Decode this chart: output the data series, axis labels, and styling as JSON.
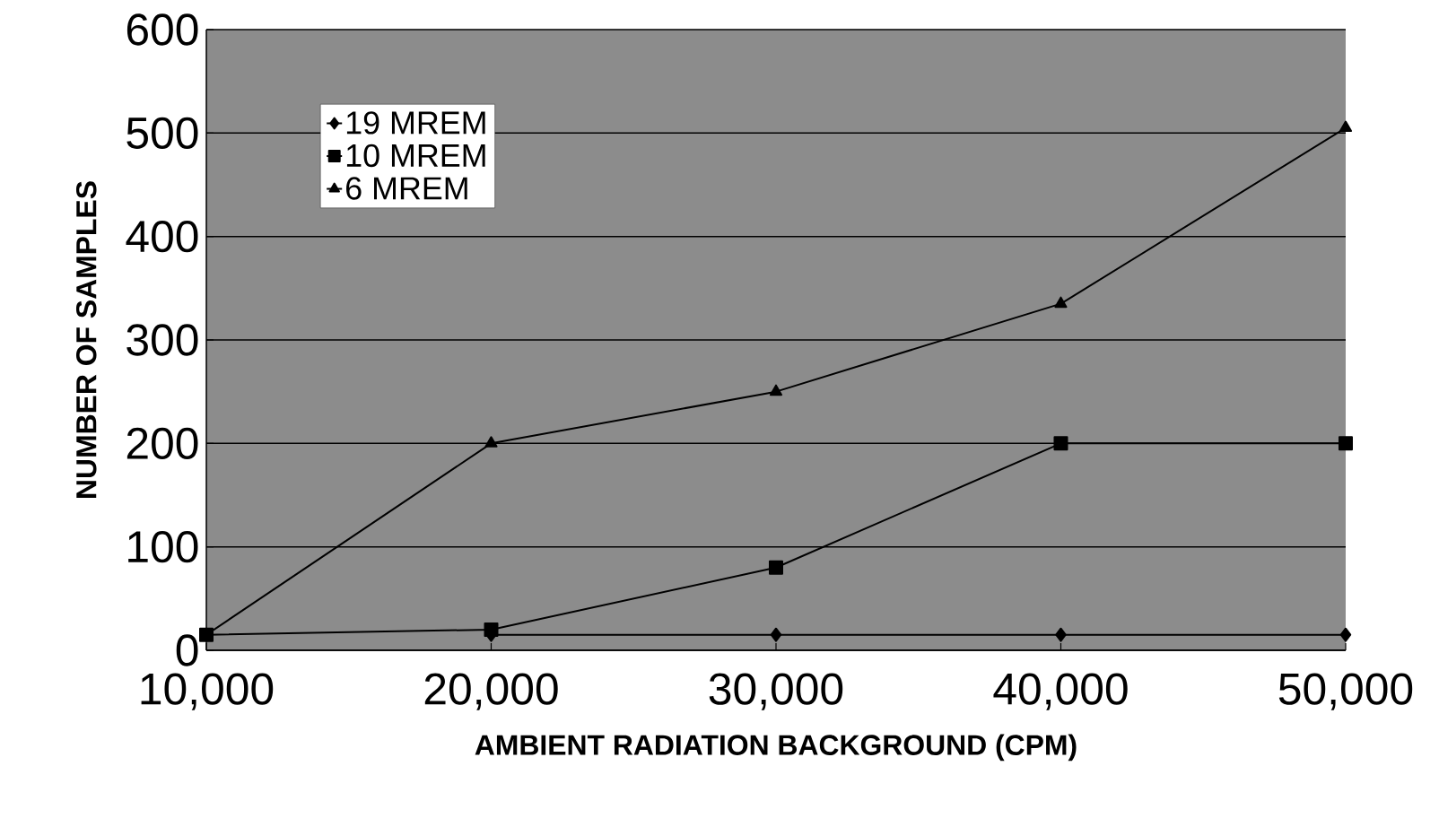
{
  "chart_data": {
    "type": "line",
    "xlabel": "AMBIENT RADIATION BACKGROUND (CPM)",
    "ylabel": "NUMBER OF SAMPLES",
    "x": [
      10000,
      20000,
      30000,
      40000,
      50000
    ],
    "series": [
      {
        "name": "19 MREM",
        "color": "#000000",
        "marker": "diamond",
        "values": [
          null,
          15,
          15,
          15,
          15
        ]
      },
      {
        "name": "10 MREM",
        "color": "#000000",
        "marker": "square",
        "values": [
          15,
          20,
          80,
          200,
          200
        ]
      },
      {
        "name": "6 MREM",
        "color": "#000000",
        "marker": "triangle",
        "values": [
          15,
          200,
          250,
          335,
          505
        ]
      }
    ],
    "xlim": [
      10000,
      50000
    ],
    "xticks": [
      {
        "value": 10000,
        "label": "10,000"
      },
      {
        "value": 20000,
        "label": "20,000"
      },
      {
        "value": 30000,
        "label": "30,000"
      },
      {
        "value": 40000,
        "label": "40,000"
      },
      {
        "value": 50000,
        "label": "50,000"
      }
    ],
    "ylim": [
      0,
      600
    ],
    "yticks": [
      0,
      100,
      200,
      300,
      400,
      500,
      600
    ],
    "grid": "y",
    "legend": "top left",
    "line_style": "solid"
  }
}
